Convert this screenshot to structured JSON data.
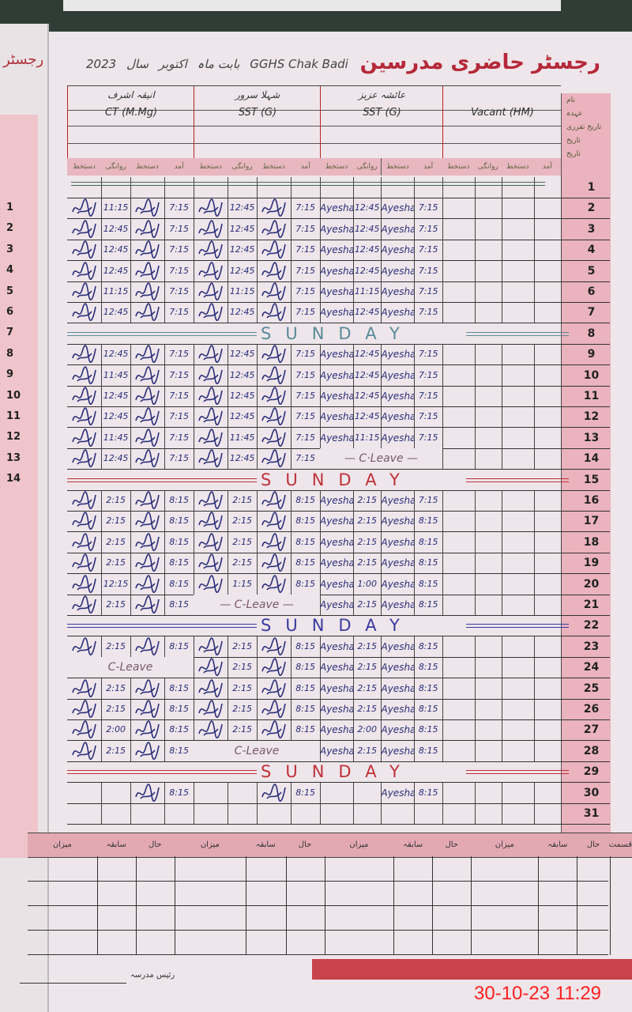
{
  "register": {
    "title": "رجسٹر حاضری مدرسین",
    "school": "GGHS Chak Badi",
    "month_label": "بابت ماہ",
    "month": "اکتوبر",
    "year_label": "سال",
    "year": "2023",
    "left_page_heading": "رجسٹر",
    "teachers": [
      {
        "name": "انیقہ اشرف",
        "post": "CT (M.Mg)"
      },
      {
        "name": "شہلا سرور",
        "post": "SST (G)"
      },
      {
        "name": "عائشہ عزیز",
        "post": "SST (G)"
      },
      {
        "name": "",
        "post": "Vacant (HM)"
      }
    ],
    "side_labels": [
      "نام",
      "عہدہ",
      "تاریخ تقرری",
      "تاریخ",
      "تاریخ"
    ],
    "column_headers": [
      "دستخط",
      "روانگی",
      "دستخط",
      "آمد"
    ],
    "sunday_text": "SUNDAY",
    "ink_colors": {
      "blue": "#2b2d7a",
      "red": "#c0303a",
      "green": "#3f6b55"
    },
    "days": [
      {
        "d": "1",
        "type": "line"
      },
      {
        "d": "2",
        "g": [
          [
            true,
            "11:15",
            true,
            "7:15"
          ],
          [
            true,
            "12:45",
            true,
            "7:15"
          ],
          [
            "Ayesha",
            "12:45",
            "Ayesha",
            "7:15"
          ]
        ]
      },
      {
        "d": "3",
        "g": [
          [
            true,
            "12:45",
            true,
            "7:15"
          ],
          [
            true,
            "12:45",
            true,
            "7:15"
          ],
          [
            "Ayesha",
            "12:45",
            "Ayesha",
            "7:15"
          ]
        ]
      },
      {
        "d": "4",
        "g": [
          [
            true,
            "12:45",
            true,
            "7:15"
          ],
          [
            true,
            "12:45",
            true,
            "7:15"
          ],
          [
            "Ayesha",
            "12:45",
            "Ayesha",
            "7:15"
          ]
        ]
      },
      {
        "d": "5",
        "g": [
          [
            true,
            "12:45",
            true,
            "7:15"
          ],
          [
            true,
            "12:45",
            true,
            "7:15"
          ],
          [
            "Ayesha",
            "12:45",
            "Ayesha",
            "7:15"
          ]
        ]
      },
      {
        "d": "6",
        "g": [
          [
            true,
            "11:15",
            true,
            "7:15"
          ],
          [
            true,
            "11:15",
            true,
            "7:15"
          ],
          [
            "Ayesha",
            "11:15",
            "Ayesha",
            "7:15"
          ]
        ]
      },
      {
        "d": "7",
        "g": [
          [
            true,
            "12:45",
            true,
            "7:15"
          ],
          [
            true,
            "12:45",
            true,
            "7:15"
          ],
          [
            "Ayesha",
            "12:45",
            "Ayesha",
            "7:15"
          ]
        ]
      },
      {
        "d": "8",
        "type": "sunday",
        "color": "#5a8a9a"
      },
      {
        "d": "9",
        "g": [
          [
            true,
            "12:45",
            true,
            "7:15"
          ],
          [
            true,
            "12:45",
            true,
            "7:15"
          ],
          [
            "Ayesha",
            "12:45",
            "Ayesha",
            "7:15"
          ]
        ]
      },
      {
        "d": "10",
        "g": [
          [
            true,
            "11:45",
            true,
            "7:15"
          ],
          [
            true,
            "12:45",
            true,
            "7:15"
          ],
          [
            "Ayesha",
            "12:45",
            "Ayesha",
            "7:15"
          ]
        ]
      },
      {
        "d": "11",
        "g": [
          [
            true,
            "12:45",
            true,
            "7:15"
          ],
          [
            true,
            "12:45",
            true,
            "7:15"
          ],
          [
            "Ayesha",
            "12:45",
            "Ayesha",
            "7:15"
          ]
        ]
      },
      {
        "d": "12",
        "g": [
          [
            true,
            "12:45",
            true,
            "7:15"
          ],
          [
            true,
            "12:45",
            true,
            "7:15"
          ],
          [
            "Ayesha",
            "12:45",
            "Ayesha",
            "7:15"
          ]
        ]
      },
      {
        "d": "13",
        "g": [
          [
            true,
            "11:45",
            true,
            "7:15"
          ],
          [
            true,
            "11:45",
            true,
            "7:15"
          ],
          [
            "Ayesha",
            "11:15",
            "Ayesha",
            "7:15"
          ]
        ]
      },
      {
        "d": "14",
        "g": [
          [
            true,
            "12:45",
            true,
            "7:15"
          ],
          [
            true,
            "12:45",
            true,
            "7:15"
          ]
        ],
        "leave": {
          "group": 2,
          "text": "— C·Leave —"
        }
      },
      {
        "d": "15",
        "type": "sunday",
        "color": "#c0303a"
      },
      {
        "d": "16",
        "g": [
          [
            true,
            "2:15",
            true,
            "8:15"
          ],
          [
            true,
            "2:15",
            true,
            "8:15"
          ],
          [
            "Ayesha",
            "2:15",
            "Ayesha",
            "7:15"
          ]
        ]
      },
      {
        "d": "17",
        "g": [
          [
            true,
            "2:15",
            true,
            "8:15"
          ],
          [
            true,
            "2:15",
            true,
            "8:15"
          ],
          [
            "Ayesha",
            "2:15",
            "Ayesha",
            "8:15"
          ]
        ]
      },
      {
        "d": "18",
        "g": [
          [
            true,
            "2:15",
            true,
            "8:15"
          ],
          [
            true,
            "2:15",
            true,
            "8:15"
          ],
          [
            "Ayesha",
            "2:15",
            "Ayesha",
            "8:15"
          ]
        ]
      },
      {
        "d": "19",
        "g": [
          [
            true,
            "2:15",
            true,
            "8:15"
          ],
          [
            true,
            "2:15",
            true,
            "8:15"
          ],
          [
            "Ayesha",
            "2:15",
            "Ayesha",
            "8:15"
          ]
        ]
      },
      {
        "d": "20",
        "g": [
          [
            true,
            "12:15",
            true,
            "8:15"
          ],
          [
            true,
            "1:15",
            true,
            "8:15"
          ],
          [
            "Ayesha",
            "1:00",
            "Ayesha",
            "8:15"
          ]
        ]
      },
      {
        "d": "21",
        "g": [
          [
            true,
            "2:15",
            true,
            "8:15"
          ],
          null,
          [
            "Ayesha",
            "2:15",
            "Ayesha",
            "8:15"
          ]
        ],
        "leave": {
          "group": 1,
          "text": "— C-Leave —"
        }
      },
      {
        "d": "22",
        "type": "sunday",
        "color": "#3a3aa0"
      },
      {
        "d": "23",
        "g": [
          [
            true,
            "2:15",
            true,
            "8:15"
          ],
          [
            true,
            "2:15",
            true,
            "8:15"
          ],
          [
            "Ayesha",
            "2:15",
            "Ayesha",
            "8:15"
          ]
        ]
      },
      {
        "d": "24",
        "g": [
          null,
          [
            true,
            "2:15",
            true,
            "8:15"
          ],
          [
            "Ayesha",
            "2:15",
            "Ayesha",
            "8:15"
          ]
        ],
        "leave": {
          "group": 0,
          "text": "C-Leave"
        }
      },
      {
        "d": "25",
        "g": [
          [
            true,
            "2:15",
            true,
            "8:15"
          ],
          [
            true,
            "2:15",
            true,
            "8:15"
          ],
          [
            "Ayesha",
            "2:15",
            "Ayesha",
            "8:15"
          ]
        ]
      },
      {
        "d": "26",
        "g": [
          [
            true,
            "2:15",
            true,
            "8:15"
          ],
          [
            true,
            "2:15",
            true,
            "8:15"
          ],
          [
            "Ayesha",
            "2:15",
            "Ayesha",
            "8:15"
          ]
        ]
      },
      {
        "d": "27",
        "g": [
          [
            true,
            "2:00",
            true,
            "8:15"
          ],
          [
            true,
            "2:15",
            true,
            "8:15"
          ],
          [
            "Ayesha",
            "2:00",
            "Ayesha",
            "8:15"
          ]
        ]
      },
      {
        "d": "28",
        "g": [
          [
            true,
            "2:15",
            true,
            "8:15"
          ],
          null,
          [
            "Ayesha",
            "2:15",
            "Ayesha",
            "8:15"
          ]
        ],
        "leave": {
          "group": 1,
          "text": "C-Leave"
        }
      },
      {
        "d": "29",
        "type": "sunday",
        "color": "#c0303a"
      },
      {
        "d": "30",
        "g": [
          [
            null,
            null,
            true,
            "8:15"
          ],
          [
            null,
            null,
            true,
            "8:15"
          ],
          [
            null,
            null,
            "Ayesha",
            "8:15"
          ]
        ]
      },
      {
        "d": "31"
      }
    ],
    "summary_headers": [
      "میزان",
      "سابقہ",
      "حال",
      "میزان",
      "سابقہ",
      "حال",
      "میزان",
      "سابقہ",
      "حال",
      "میزان",
      "سابقہ",
      "حال",
      "قسمت"
    ],
    "footer_signature_label": "رئیس مدرسہ"
  },
  "timestamp": "30-10-23  11:29"
}
